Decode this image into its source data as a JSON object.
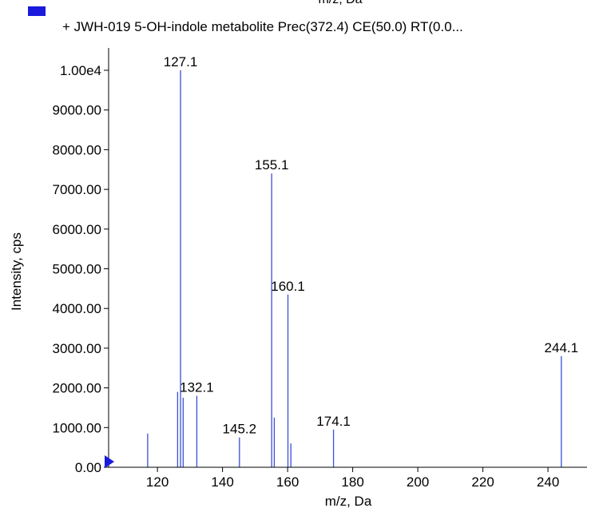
{
  "chart_data": {
    "type": "bar",
    "top_clipped_label": "m/z, Da",
    "legend": {
      "text": "+ JWH-019 5-OH-indole metabolite Prec(372.4) CE(50.0) RT(0.0...",
      "color": "#1a1adc"
    },
    "xlabel": "m/z, Da",
    "ylabel": "Intensity, cps",
    "xlim": [
      105,
      252
    ],
    "ylim": [
      0,
      10000
    ],
    "x_ticks": [
      120,
      140,
      160,
      180,
      200,
      220,
      240
    ],
    "x_tick_labels": [
      "120",
      "140",
      "160",
      "180",
      "200",
      "220",
      "240"
    ],
    "y_ticks": [
      0,
      1000,
      2000,
      3000,
      4000,
      5000,
      6000,
      7000,
      8000,
      9000,
      10000
    ],
    "y_tick_labels": [
      "0.00",
      "1000.00",
      "2000.00",
      "3000.00",
      "4000.00",
      "5000.00",
      "6000.00",
      "7000.00",
      "8000.00",
      "9000.00",
      "1.00e4"
    ],
    "line_color": "#3a4fd6",
    "peaks": [
      {
        "x": 117.0,
        "y": 850,
        "label": ""
      },
      {
        "x": 126.2,
        "y": 1900,
        "label": ""
      },
      {
        "x": 127.1,
        "y": 10000,
        "label": "127.1"
      },
      {
        "x": 127.9,
        "y": 1750,
        "label": ""
      },
      {
        "x": 132.1,
        "y": 1800,
        "label": "132.1"
      },
      {
        "x": 145.2,
        "y": 750,
        "label": "145.2"
      },
      {
        "x": 155.1,
        "y": 7400,
        "label": "155.1"
      },
      {
        "x": 155.9,
        "y": 1250,
        "label": ""
      },
      {
        "x": 160.1,
        "y": 4350,
        "label": "160.1"
      },
      {
        "x": 161.0,
        "y": 600,
        "label": ""
      },
      {
        "x": 174.1,
        "y": 950,
        "label": "174.1"
      },
      {
        "x": 244.1,
        "y": 2800,
        "label": "244.1"
      }
    ]
  }
}
